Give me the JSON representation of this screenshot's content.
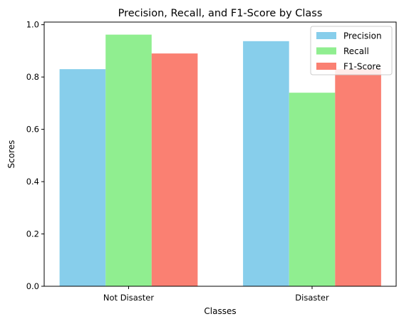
{
  "chart_data": {
    "type": "bar",
    "title": "Precision, Recall, and F1-Score by Class",
    "xlabel": "Classes",
    "ylabel": "Scores",
    "categories": [
      "Not Disaster",
      "Disaster"
    ],
    "series": [
      {
        "name": "Precision",
        "values": [
          0.83,
          0.937
        ],
        "color": "#87ceeb"
      },
      {
        "name": "Recall",
        "values": [
          0.962,
          0.74
        ],
        "color": "#90ee90"
      },
      {
        "name": "F1-Score",
        "values": [
          0.89,
          0.83
        ],
        "color": "#fa8072"
      }
    ],
    "ylim": [
      0,
      1.01
    ],
    "yticks": [
      0.0,
      0.2,
      0.4,
      0.6,
      0.8,
      1.0
    ],
    "ytick_labels": [
      "0.0",
      "0.2",
      "0.4",
      "0.6",
      "0.8",
      "1.0"
    ],
    "grid": false,
    "legend_position": "top-right"
  }
}
